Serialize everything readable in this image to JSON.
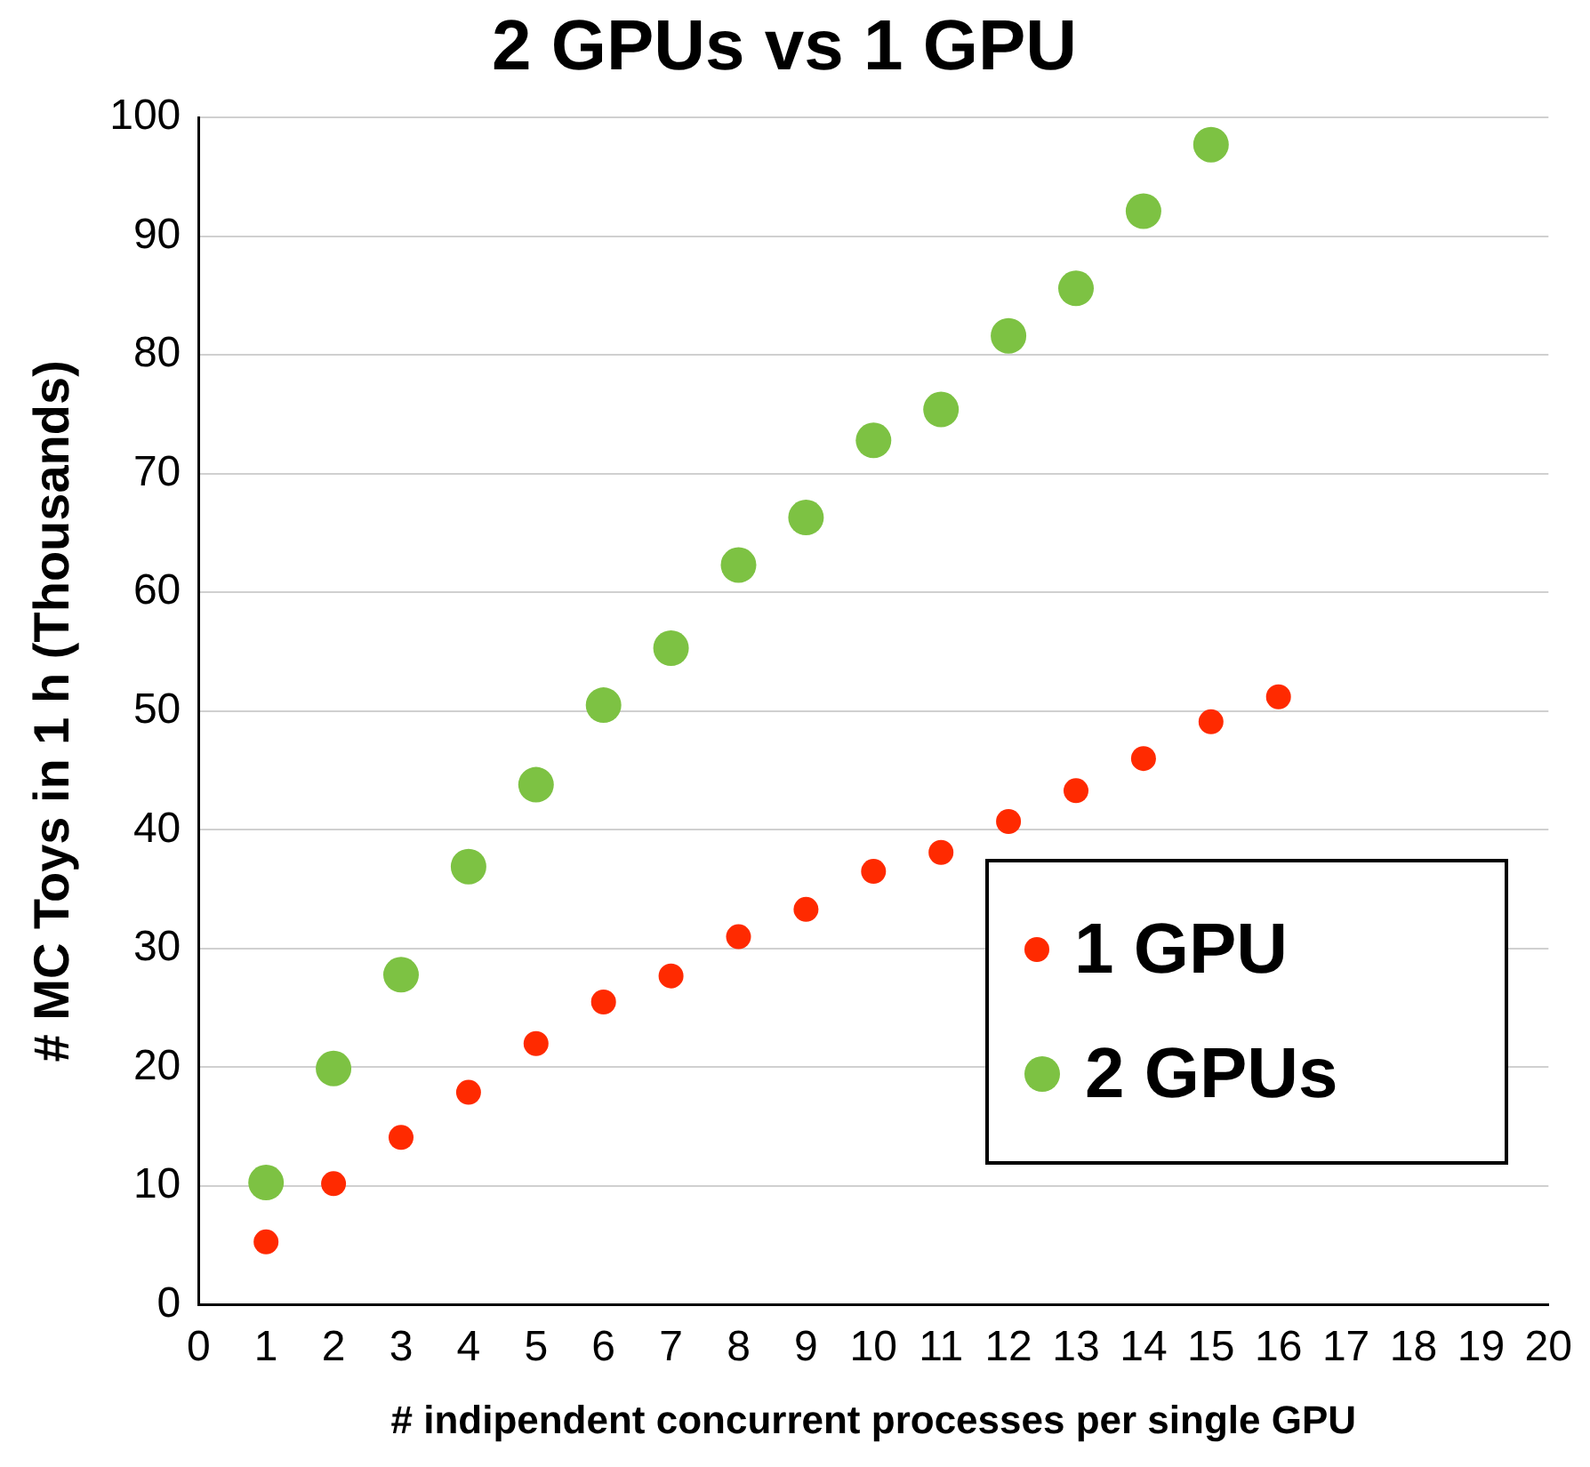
{
  "chart_data": {
    "type": "scatter",
    "title": "2 GPUs vs 1 GPU",
    "xlabel": "# indipendent concurrent processes per single GPU",
    "ylabel": "# MC Toys in 1 h (Thousands)",
    "xlim": [
      0,
      20
    ],
    "xticks": [
      0,
      1,
      2,
      3,
      4,
      5,
      6,
      7,
      8,
      9,
      10,
      11,
      12,
      13,
      14,
      15,
      16,
      17,
      18,
      19,
      20
    ],
    "ylim": [
      0,
      100
    ],
    "yticks": [
      0,
      10,
      20,
      30,
      40,
      50,
      60,
      70,
      80,
      90,
      100
    ],
    "grid": "y",
    "legend": "bottom right",
    "marker": "circle",
    "series": [
      {
        "name": "1 GPU",
        "color": "#ff2a00",
        "x": [
          1,
          2,
          3,
          4,
          5,
          6,
          7,
          8,
          9,
          10,
          11,
          12,
          13,
          14,
          15,
          16
        ],
        "values": [
          5.3,
          10.2,
          14.1,
          17.9,
          22.0,
          25.5,
          27.7,
          31.0,
          33.3,
          36.5,
          38.1,
          40.7,
          43.3,
          46.0,
          49.1,
          51.2
        ]
      },
      {
        "name": "2 GPUs",
        "color": "#7dc243",
        "x": [
          1,
          2,
          3,
          4,
          5,
          6,
          7,
          8,
          9,
          10,
          11,
          12,
          13,
          14,
          15
        ],
        "values": [
          10.3,
          19.9,
          27.8,
          36.9,
          43.8,
          50.5,
          55.3,
          62.3,
          66.3,
          72.8,
          75.4,
          81.6,
          85.6,
          92.1,
          97.7
        ]
      }
    ]
  }
}
